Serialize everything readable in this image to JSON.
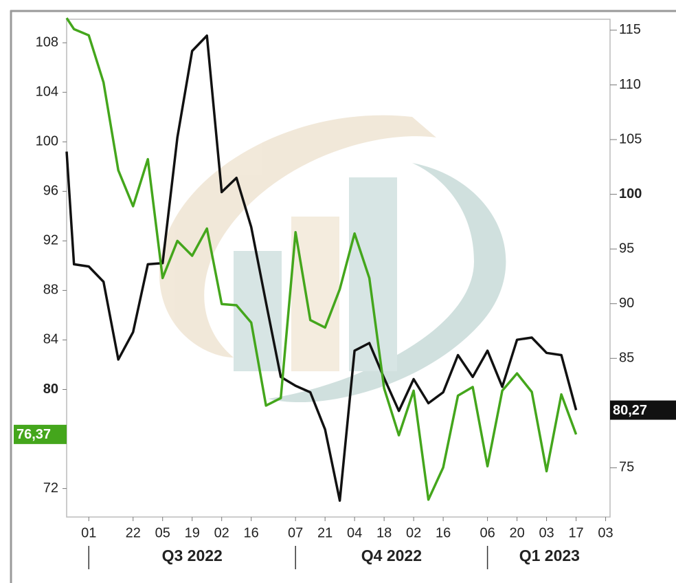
{
  "chart_data": {
    "type": "line",
    "x": [
      0.5,
      1,
      2,
      3,
      4,
      5,
      6,
      7,
      8,
      9,
      10,
      11,
      12,
      13,
      14,
      15,
      16,
      17,
      18,
      19,
      20,
      21,
      22,
      23,
      24,
      25,
      26,
      27,
      28,
      29,
      30,
      31,
      32,
      33,
      34,
      35
    ],
    "series": [
      {
        "color": "#111111",
        "axis": "y2",
        "values": [
          103.9,
          93.6,
          93.4,
          92.0,
          84.9,
          87.4,
          93.6,
          93.7,
          105.2,
          113.1,
          114.5,
          100.2,
          101.5,
          97.0,
          90.1,
          83.3,
          82.5,
          81.9,
          78.5,
          72.0,
          85.7,
          86.4,
          83.2,
          80.2,
          83.1,
          80.9,
          81.9,
          85.3,
          83.3,
          85.7,
          82.4,
          86.7,
          86.9,
          85.5,
          85.3,
          80.27
        ],
        "value_labels": [
          null,
          null,
          null,
          null,
          null,
          null,
          null,
          null,
          null,
          null,
          null,
          null,
          null,
          null,
          null,
          null,
          null,
          null,
          null,
          null,
          null,
          null,
          null,
          null,
          null,
          null,
          null,
          null,
          null,
          null,
          null,
          null,
          null,
          null,
          null,
          "80,27"
        ]
      },
      {
        "color": "#44a61c",
        "axis": "y",
        "values": [
          110.0,
          109.1,
          108.6,
          104.8,
          97.7,
          94.8,
          98.6,
          89.0,
          92.0,
          90.8,
          93.0,
          86.9,
          86.8,
          85.4,
          78.7,
          79.3,
          92.7,
          85.6,
          85.0,
          88.1,
          92.6,
          89.0,
          80.1,
          76.3,
          79.9,
          71.1,
          73.7,
          79.5,
          80.2,
          73.8,
          79.9,
          81.3,
          79.8,
          73.4,
          79.6,
          76.37
        ],
        "value_labels": [
          null,
          null,
          null,
          null,
          null,
          null,
          null,
          null,
          null,
          null,
          null,
          null,
          null,
          null,
          null,
          null,
          null,
          null,
          null,
          null,
          null,
          null,
          null,
          null,
          null,
          null,
          null,
          null,
          null,
          null,
          null,
          null,
          null,
          null,
          null,
          "76,37"
        ]
      }
    ],
    "xlim": [
      0.5,
      37.3
    ],
    "xticks": [
      {
        "value": 2,
        "label": "01"
      },
      {
        "value": 5,
        "label": "22"
      },
      {
        "value": 7,
        "label": "05"
      },
      {
        "value": 9,
        "label": "19"
      },
      {
        "value": 11,
        "label": "02"
      },
      {
        "value": 13,
        "label": "16"
      },
      {
        "value": 16,
        "label": "07"
      },
      {
        "value": 18,
        "label": "21"
      },
      {
        "value": 20,
        "label": "04"
      },
      {
        "value": 22,
        "label": "18"
      },
      {
        "value": 24,
        "label": "02"
      },
      {
        "value": 26,
        "label": "16"
      },
      {
        "value": 29,
        "label": "06"
      },
      {
        "value": 31,
        "label": "20"
      },
      {
        "value": 33,
        "label": "03"
      },
      {
        "value": 35,
        "label": "17"
      },
      {
        "value": 37,
        "label": "03"
      }
    ],
    "quarter_labels": [
      {
        "value": 9,
        "label": "Q3 2022"
      },
      {
        "value": 22.5,
        "label": "Q4 2022"
      },
      {
        "value": 33.2,
        "label": "Q1 2023"
      }
    ],
    "quarter_separators": [
      2,
      16,
      29
    ],
    "ylim": [
      69.7,
      109.9
    ],
    "yticks": [
      72,
      76,
      80,
      84,
      88,
      92,
      96,
      100,
      104,
      108
    ],
    "emphasized_ytick": 80,
    "y2lim": [
      70.5,
      116
    ],
    "y2ticks": [
      75,
      80,
      85,
      90,
      95,
      100,
      105,
      110,
      115
    ],
    "emphasized_y2tick": 100
  }
}
